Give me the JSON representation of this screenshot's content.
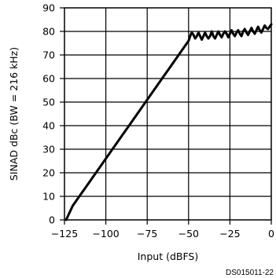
{
  "chart_data": {
    "type": "line",
    "title": "",
    "xlabel": "Input (dBFS)",
    "ylabel": "SINAD dBc (BW = 216 kHz)",
    "xlim": [
      -125,
      0
    ],
    "ylim": [
      0,
      90
    ],
    "x_ticks": [
      -125,
      -100,
      -75,
      -50,
      -25,
      0
    ],
    "x_tick_labels": [
      "−125",
      "−100",
      "−75",
      "−50",
      "−25",
      "0"
    ],
    "y_ticks": [
      0,
      10,
      20,
      30,
      40,
      50,
      60,
      70,
      80,
      90
    ],
    "y_tick_labels": [
      "0",
      "10",
      "20",
      "30",
      "40",
      "50",
      "60",
      "70",
      "80",
      "90"
    ],
    "grid": true,
    "line_color": "#000000",
    "series": [
      {
        "x": [
          -124,
          -122,
          -120,
          -117,
          -115,
          -112,
          -110,
          -107,
          -105,
          -102,
          -100,
          -97,
          -95,
          -92,
          -90,
          -87,
          -85,
          -82,
          -80,
          -77,
          -75,
          -72,
          -70,
          -67,
          -65,
          -62,
          -60,
          -57,
          -55,
          -52,
          -50,
          -49,
          -48.5,
          -48,
          -47,
          -46,
          -45,
          -44,
          -43,
          -42,
          -41,
          -40,
          -39,
          -38,
          -37,
          -36,
          -35,
          -34,
          -33,
          -32,
          -31,
          -30,
          -29,
          -28,
          -27,
          -26,
          -25,
          -24,
          -23,
          -22,
          -21,
          -20,
          -19,
          -18,
          -17,
          -16,
          -15,
          -14,
          -13,
          -12,
          -11,
          -10,
          -9,
          -8,
          -7,
          -6,
          -5,
          -4,
          -3,
          -2,
          -1,
          0
        ],
        "y": [
          0,
          3,
          6,
          9,
          11,
          14,
          16,
          19,
          21,
          24,
          26,
          29,
          31,
          34,
          36,
          39,
          41,
          44,
          46,
          49,
          51,
          54,
          56,
          59,
          61,
          64,
          66,
          69,
          71,
          74,
          76,
          78,
          79,
          79.5,
          78.5,
          77,
          78,
          79.5,
          78,
          76.5,
          78,
          79.5,
          78,
          77,
          78,
          80,
          78,
          77,
          78.5,
          80,
          78.5,
          77.5,
          79,
          80,
          79,
          77.5,
          79,
          80.5,
          79,
          78,
          79.5,
          80.5,
          79,
          78,
          80,
          81,
          79.5,
          78.5,
          80,
          81.5,
          80,
          79,
          80.5,
          82,
          80.5,
          79.5,
          81,
          82.5,
          81.5,
          81,
          82,
          83
        ]
      }
    ]
  },
  "figure_ref": "DS015011-22"
}
